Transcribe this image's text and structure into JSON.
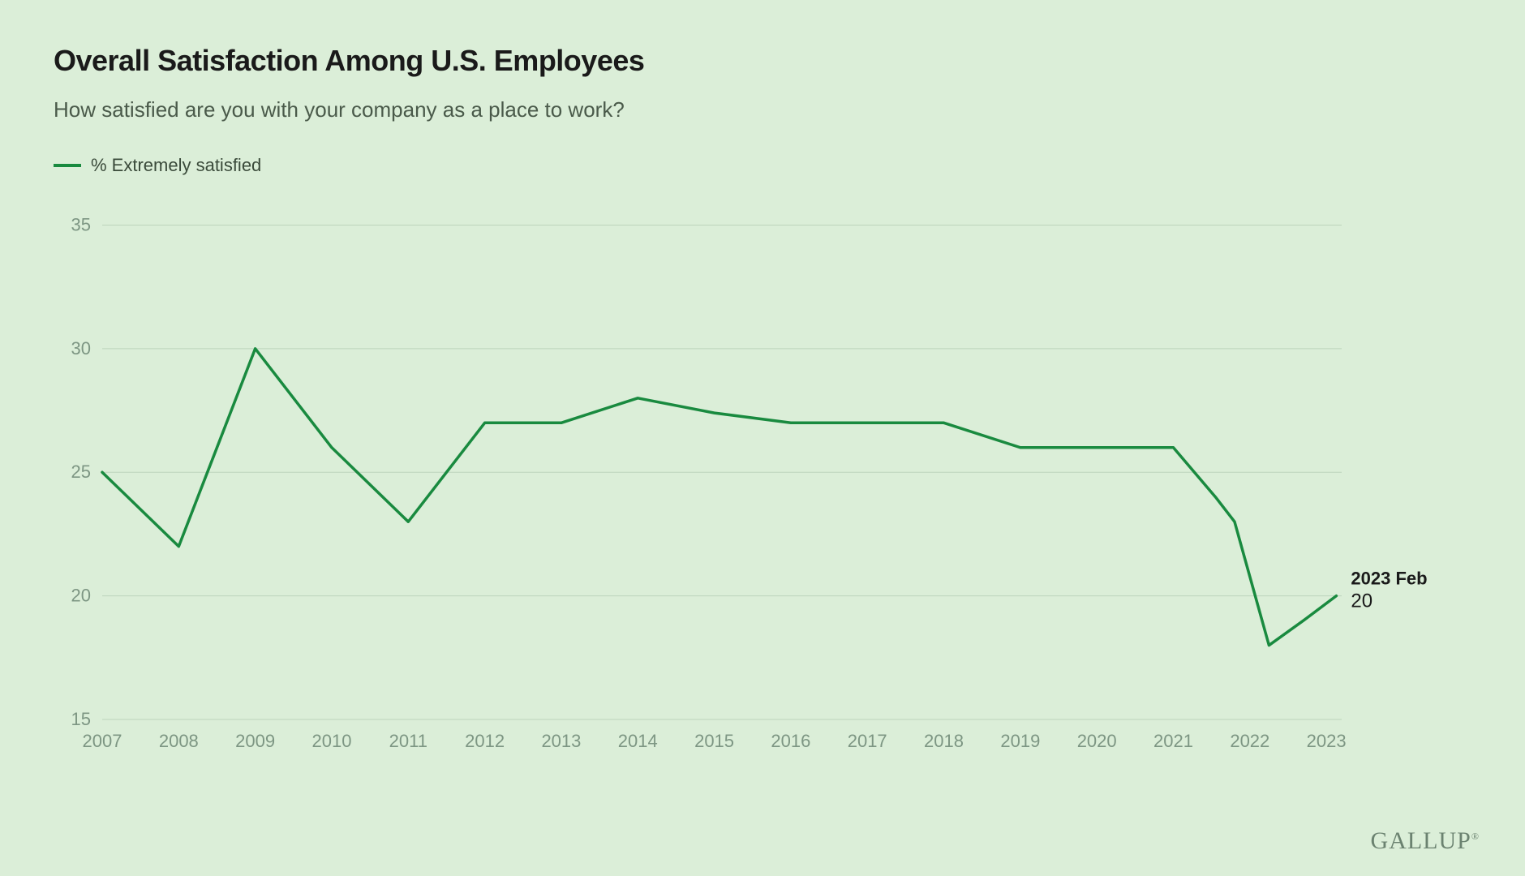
{
  "colors": {
    "background": "#dbeed8",
    "title": "#1a1a1a",
    "subtitle": "#4a5a4a",
    "legend_text": "#3a4a3a",
    "axis_text": "#7d9683",
    "gridline": "#bdd4bc",
    "series_line": "#198a3f",
    "end_label": "#1a1a1a",
    "brand": "#6b8270"
  },
  "title": "Overall Satisfaction Among U.S. Employees",
  "subtitle": "How satisfied are you with your company as a place to work?",
  "legend": {
    "label": "% Extremely satisfied"
  },
  "chart": {
    "type": "line",
    "ylim": [
      15,
      36
    ],
    "yticks": [
      15,
      20,
      25,
      30,
      35
    ],
    "xticks": [
      2007,
      2008,
      2009,
      2010,
      2011,
      2012,
      2013,
      2014,
      2015,
      2016,
      2017,
      2018,
      2019,
      2020,
      2021,
      2022,
      2023
    ],
    "xlim_min": 2007,
    "xlim_max": 2023.2,
    "line_width": 3.5,
    "grid_width": 1,
    "points": [
      {
        "x": 2007.0,
        "y": 25
      },
      {
        "x": 2008.0,
        "y": 22
      },
      {
        "x": 2009.0,
        "y": 30
      },
      {
        "x": 2010.0,
        "y": 26
      },
      {
        "x": 2011.0,
        "y": 23
      },
      {
        "x": 2012.0,
        "y": 27
      },
      {
        "x": 2013.0,
        "y": 27
      },
      {
        "x": 2014.0,
        "y": 28
      },
      {
        "x": 2015.0,
        "y": 27.4
      },
      {
        "x": 2016.0,
        "y": 27
      },
      {
        "x": 2017.0,
        "y": 27
      },
      {
        "x": 2018.0,
        "y": 27
      },
      {
        "x": 2019.0,
        "y": 26
      },
      {
        "x": 2020.0,
        "y": 26
      },
      {
        "x": 2021.0,
        "y": 26
      },
      {
        "x": 2021.55,
        "y": 24
      },
      {
        "x": 2021.8,
        "y": 23
      },
      {
        "x": 2022.25,
        "y": 18
      },
      {
        "x": 2022.7,
        "y": 19
      },
      {
        "x": 2023.13,
        "y": 20
      }
    ],
    "end_annotation": {
      "date": "2023 Feb",
      "value": "20"
    }
  },
  "brand": "GALLUP"
}
